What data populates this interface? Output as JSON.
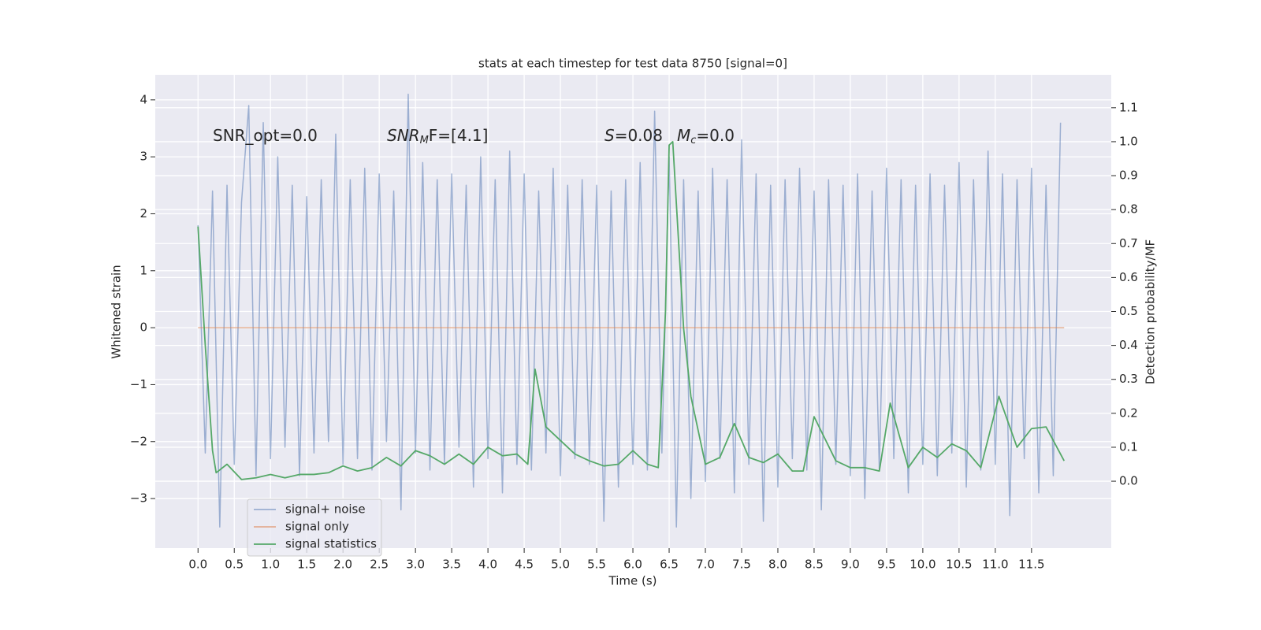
{
  "chart_data": {
    "type": "line",
    "title": "stats at each timestep for test data 8750 [signal=0]",
    "x_label": "Time (s)",
    "y_label": "Whitened strain",
    "y2_label": "Detection probability/MF",
    "annotations": [
      {
        "parts": [
          "SNR_opt=0.0"
        ]
      },
      {
        "parts": [
          "SNR",
          "M",
          "F=[4.1]"
        ]
      },
      {
        "parts": [
          "S",
          "=0.08"
        ]
      },
      {
        "parts": [
          "M",
          "c",
          "=0.0"
        ]
      }
    ],
    "xlim": [
      -0.59,
      12.6
    ],
    "ylim": [
      -3.87,
      4.44
    ],
    "y2lim": [
      -0.197,
      1.197
    ],
    "xticks": [
      {
        "value": 0,
        "label": "0.0"
      },
      0.5,
      {
        "value": 1,
        "label": "1.0"
      },
      1.5,
      {
        "value": 2,
        "label": "2.0"
      },
      2.5,
      {
        "value": 3,
        "label": "3.0"
      },
      3.5,
      {
        "value": 4,
        "label": "4.0"
      },
      4.5,
      {
        "value": 5,
        "label": "5.0"
      },
      5.5,
      {
        "value": 6,
        "label": "6.0"
      },
      6.5,
      {
        "value": 7,
        "label": "7.0"
      },
      7.5,
      {
        "value": 8,
        "label": "8.0"
      },
      8.5,
      {
        "value": 9,
        "label": "9.0"
      },
      9.5,
      {
        "value": 10,
        "label": "10.0"
      },
      10.5,
      {
        "value": 11,
        "label": "11.0"
      },
      11.5
    ],
    "yticks": [
      -3,
      -2,
      -1,
      0,
      1,
      2,
      3,
      4
    ],
    "y2ticks": [
      {
        "value": 0,
        "label": "0.0"
      },
      0.1,
      0.2,
      0.3,
      0.4,
      0.5,
      0.6,
      0.7,
      0.8,
      0.9,
      {
        "value": 1,
        "label": "1.0"
      },
      1.1
    ],
    "grid": true,
    "legend": "lower left",
    "series": [
      {
        "name": "signal+ noise",
        "color": "#4c72b0",
        "opacity": 0.5,
        "x": [
          0,
          0.1,
          0.2,
          0.3,
          0.4,
          0.5,
          0.6,
          0.7,
          0.8,
          0.9,
          1,
          1.1,
          1.2,
          1.3,
          1.4,
          1.5,
          1.6,
          1.7,
          1.8,
          1.9,
          2,
          2.1,
          2.2,
          2.3,
          2.4,
          2.5,
          2.6,
          2.7,
          2.8,
          2.9,
          3,
          3.1,
          3.2,
          3.3,
          3.4,
          3.5,
          3.6,
          3.7,
          3.8,
          3.9,
          4,
          4.1,
          4.2,
          4.3,
          4.4,
          4.5,
          4.6,
          4.7,
          4.8,
          4.9,
          5,
          5.1,
          5.2,
          5.3,
          5.4,
          5.5,
          5.6,
          5.7,
          5.8,
          5.9,
          6,
          6.1,
          6.2,
          6.3,
          6.4,
          6.5,
          6.6,
          6.7,
          6.8,
          6.9,
          7,
          7.1,
          7.2,
          7.3,
          7.4,
          7.5,
          7.6,
          7.7,
          7.8,
          7.9,
          8,
          8.1,
          8.2,
          8.3,
          8.4,
          8.5,
          8.6,
          8.7,
          8.8,
          8.9,
          9,
          9.1,
          9.2,
          9.3,
          9.4,
          9.5,
          9.6,
          9.7,
          9.8,
          9.9,
          10,
          10.1,
          10.2,
          10.3,
          10.4,
          10.5,
          10.6,
          10.7,
          10.8,
          10.9,
          11,
          11.1,
          11.2,
          11.3,
          11.4,
          11.5,
          11.6,
          11.7,
          11.8,
          11.9
        ],
        "values": [
          1.8,
          -2.2,
          2.4,
          -3.5,
          2.5,
          -2.4,
          2.2,
          3.9,
          -2.6,
          3.6,
          -2.3,
          3.0,
          -2.1,
          2.5,
          -2.6,
          2.3,
          -2.2,
          2.6,
          -2.0,
          3.4,
          -2.4,
          2.6,
          -2.3,
          2.8,
          -2.5,
          2.7,
          -2.0,
          2.4,
          -3.2,
          4.1,
          -2.2,
          2.9,
          -2.5,
          2.6,
          -2.4,
          2.7,
          -2.1,
          2.5,
          -2.8,
          3.0,
          -2.3,
          2.6,
          -2.9,
          3.1,
          -2.4,
          2.7,
          -2.5,
          2.4,
          -2.2,
          2.8,
          -2.6,
          2.5,
          -2.3,
          2.6,
          -2.4,
          2.5,
          -3.4,
          2.4,
          -2.8,
          2.6,
          -2.4,
          2.9,
          -2.5,
          3.8,
          -2.2,
          3.0,
          -3.5,
          2.6,
          -3.0,
          2.4,
          -2.7,
          2.8,
          -2.3,
          2.6,
          -2.9,
          3.3,
          -2.4,
          2.7,
          -3.4,
          2.5,
          -2.8,
          2.6,
          -2.3,
          2.8,
          -2.5,
          2.4,
          -3.2,
          2.6,
          -2.4,
          2.5,
          -2.6,
          2.7,
          -3.0,
          2.4,
          -2.5,
          2.8,
          -2.3,
          2.6,
          -2.9,
          2.5,
          -2.4,
          2.7,
          -2.6,
          2.5,
          -2.2,
          2.9,
          -2.8,
          2.6,
          -2.5,
          3.1,
          -2.4,
          2.7,
          -3.3,
          2.6,
          -2.3,
          2.8,
          -2.9,
          2.5,
          -2.6,
          3.6
        ]
      },
      {
        "name": "signal only",
        "color": "#dd8452",
        "opacity": 0.6,
        "x": [
          0,
          11.95
        ],
        "values": [
          0,
          0
        ]
      },
      {
        "name": "signal statistics",
        "color": "#55a868",
        "opacity": 1,
        "axis": "y2",
        "x": [
          0,
          0.1,
          0.2,
          0.25,
          0.4,
          0.6,
          0.8,
          1.0,
          1.2,
          1.4,
          1.6,
          1.8,
          2.0,
          2.2,
          2.4,
          2.6,
          2.8,
          3.0,
          3.2,
          3.4,
          3.6,
          3.8,
          4.0,
          4.2,
          4.4,
          4.55,
          4.65,
          4.8,
          5.0,
          5.2,
          5.4,
          5.6,
          5.8,
          6.0,
          6.2,
          6.35,
          6.45,
          6.5,
          6.55,
          6.7,
          6.8,
          7.0,
          7.2,
          7.4,
          7.6,
          7.8,
          8.0,
          8.2,
          8.35,
          8.5,
          8.8,
          9.0,
          9.2,
          9.4,
          9.55,
          9.8,
          10.0,
          10.2,
          10.4,
          10.6,
          10.8,
          11.05,
          11.3,
          11.5,
          11.7,
          11.95
        ],
        "values": [
          0.75,
          0.4,
          0.09,
          0.025,
          0.05,
          0.005,
          0.01,
          0.02,
          0.01,
          0.02,
          0.02,
          0.025,
          0.045,
          0.03,
          0.04,
          0.07,
          0.045,
          0.09,
          0.075,
          0.05,
          0.08,
          0.05,
          0.1,
          0.075,
          0.08,
          0.05,
          0.33,
          0.16,
          0.12,
          0.08,
          0.06,
          0.045,
          0.05,
          0.09,
          0.05,
          0.04,
          0.5,
          0.99,
          1.0,
          0.45,
          0.25,
          0.05,
          0.07,
          0.17,
          0.07,
          0.055,
          0.08,
          0.03,
          0.03,
          0.19,
          0.06,
          0.04,
          0.04,
          0.03,
          0.23,
          0.04,
          0.1,
          0.07,
          0.11,
          0.09,
          0.04,
          0.25,
          0.1,
          0.155,
          0.16,
          0.06
        ]
      }
    ]
  }
}
